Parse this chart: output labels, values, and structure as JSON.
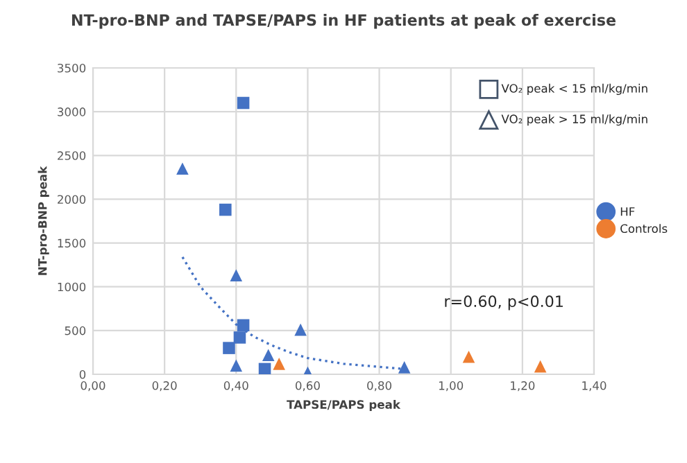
{
  "chart_data": {
    "type": "scatter",
    "title": "NT-pro-BNP and TAPSE/PAPS in HF patients at peak of exercise",
    "xlabel": "TAPSE/PAPS peak",
    "ylabel": "NT-pro-BNP peak",
    "xlim": [
      0,
      1.4
    ],
    "xticks": [
      {
        "value": 0,
        "label": "0,00"
      },
      {
        "value": 0.2,
        "label": "0,20"
      },
      {
        "value": 0.4,
        "label": "0,40"
      },
      {
        "value": 0.6,
        "label": "0,60"
      },
      {
        "value": 0.8,
        "label": "0,80"
      },
      {
        "value": 1.0,
        "label": "1,00"
      },
      {
        "value": 1.2,
        "label": "1,20"
      },
      {
        "value": 1.4,
        "label": "1,40"
      }
    ],
    "ylim": [
      0,
      3500
    ],
    "yticks": [
      0,
      500,
      1000,
      1500,
      2000,
      2500,
      3000,
      3500
    ],
    "grid": true,
    "legend": "right",
    "series": [
      {
        "name": "HF",
        "color": "#4472c4",
        "marker": "square",
        "x": [
          0.42,
          0.37,
          0.42,
          0.41,
          0.38,
          0.48
        ],
        "values": [
          3100,
          1880,
          560,
          420,
          300,
          60
        ]
      },
      {
        "color": "#4472c4",
        "marker": "triangle",
        "x": [
          0.25,
          0.4,
          0.4,
          0.49,
          0.58,
          0.6,
          0.87
        ],
        "values": [
          2350,
          1130,
          100,
          220,
          510,
          20,
          80
        ]
      },
      {
        "name": "Controls",
        "color": "#ed7d31",
        "marker": "triangle",
        "x": [
          0.52,
          1.05,
          1.25
        ],
        "values": [
          120,
          200,
          90
        ]
      },
      {
        "type": "line",
        "color": "#4472c4",
        "line_style": "dotted",
        "marker": "none",
        "x": [
          0.25,
          0.3,
          0.35,
          0.4,
          0.45,
          0.5,
          0.55,
          0.6,
          0.7,
          0.8,
          0.87
        ],
        "values": [
          1340,
          1000,
          780,
          570,
          430,
          330,
          250,
          185,
          120,
          85,
          60
        ]
      }
    ],
    "annotations": [
      "r=0.60, p<0.01",
      "VO₂ peak < 15 ml/kg/min",
      "VO₂ peak > 15 ml/kg/min"
    ]
  }
}
